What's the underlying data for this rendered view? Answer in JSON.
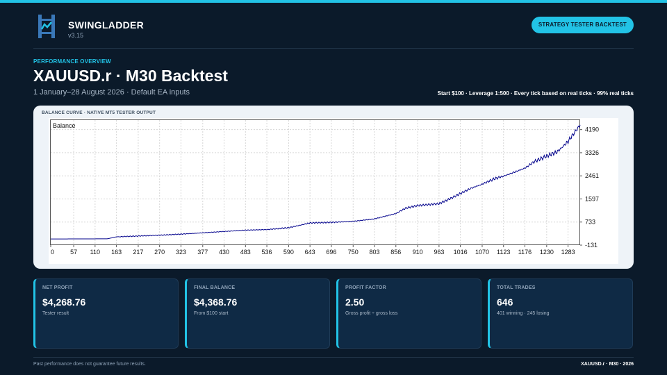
{
  "brand": {
    "name": "SWINGLADDER",
    "version": "v3.15"
  },
  "header": {
    "badge": "STRATEGY TESTER BACKTEST"
  },
  "overview": {
    "section_label": "PERFORMANCE OVERVIEW",
    "title": "XAUUSD.r · M30 Backtest",
    "subtitle": "1 January–28 August 2026 · Default EA inputs",
    "meta": "Start $100   ·   Leverage 1:500   ·   Every tick based on real ticks   ·   99% real ticks"
  },
  "chart_panel": {
    "caption": "BALANCE CURVE · NATIVE MT5 TESTER OUTPUT"
  },
  "chart_data": {
    "type": "line",
    "title": "Balance",
    "xlabel": "",
    "ylabel": "",
    "x_ticks": [
      0,
      57,
      110,
      163,
      217,
      270,
      323,
      377,
      430,
      483,
      536,
      590,
      643,
      696,
      750,
      803,
      856,
      910,
      963,
      1016,
      1070,
      1123,
      1176,
      1230,
      1283
    ],
    "y_ticks": [
      -131,
      733,
      1597,
      2461,
      3326,
      4190
    ],
    "xlim": [
      0,
      1313
    ],
    "ylim": [
      -131,
      4545
    ],
    "grid": true,
    "series": [
      {
        "color": "#00008b",
        "x": [
          0,
          57,
          110,
          140,
          163,
          217,
          270,
          323,
          377,
          430,
          483,
          536,
          590,
          620,
          643,
          696,
          750,
          803,
          856,
          880,
          910,
          963,
          990,
          1016,
          1040,
          1070,
          1100,
          1123,
          1150,
          1176,
          1200,
          1230,
          1255,
          1270,
          1283,
          1295,
          1305,
          1313
        ],
        "y": [
          100,
          102,
          104,
          106,
          180,
          210,
          240,
          280,
          330,
          380,
          430,
          450,
          520,
          620,
          700,
          720,
          760,
          850,
          1050,
          1250,
          1350,
          1420,
          1600,
          1800,
          1980,
          2150,
          2350,
          2450,
          2600,
          2750,
          3000,
          3200,
          3350,
          3550,
          3750,
          4000,
          4200,
          4368.76
        ]
      }
    ]
  },
  "kpis": [
    {
      "label": "NET PROFIT",
      "value": "$4,268.76",
      "sub": "Tester result"
    },
    {
      "label": "FINAL BALANCE",
      "value": "$4,368.76",
      "sub": "From $100 start"
    },
    {
      "label": "PROFIT FACTOR",
      "value": "2.50",
      "sub": "Gross profit ÷ gross loss"
    },
    {
      "label": "TOTAL TRADES",
      "value": "646",
      "sub": "401 winning · 245 losing"
    }
  ],
  "footer": {
    "disclaimer": "Past performance does not guarantee future results.",
    "tag": "XAUUSD.r · M30 · 2026"
  },
  "colors": {
    "accent": "#22c3e6",
    "background": "#0b1a2a",
    "card": "#0f2a45",
    "line": "#00008b"
  },
  "icons": {
    "logo": "ladder-chart-logo-icon"
  }
}
